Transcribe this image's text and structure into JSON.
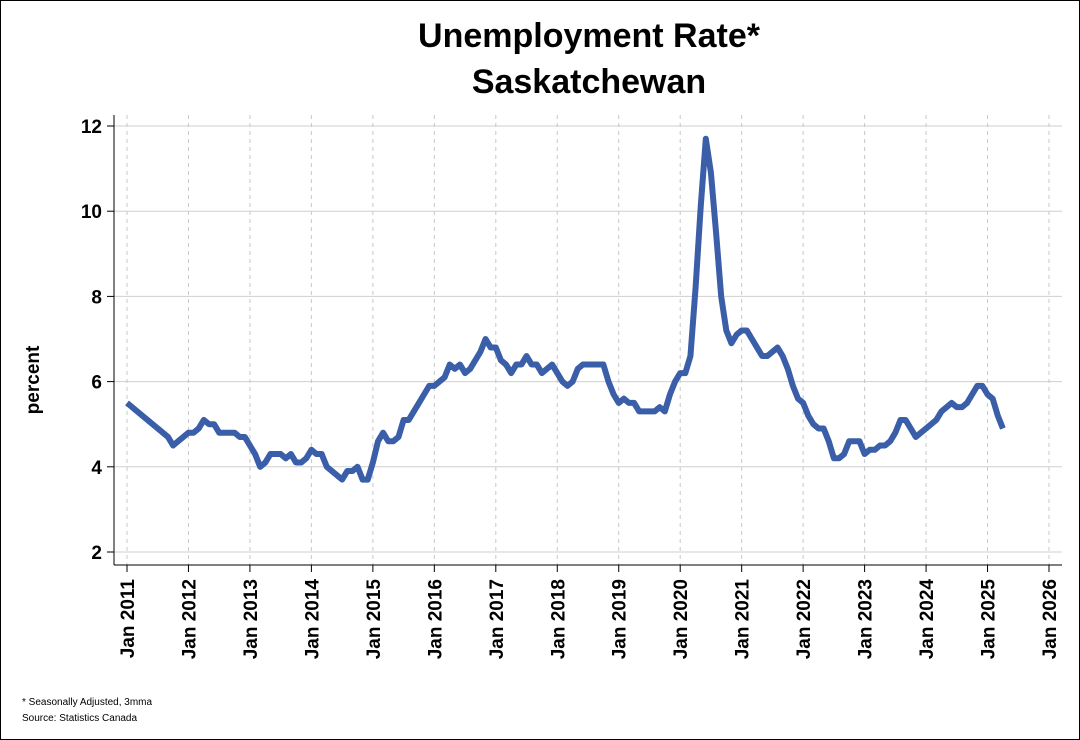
{
  "chart_data": {
    "type": "line",
    "title": "Unemployment Rate*",
    "subtitle": "Saskatchewan",
    "xlabel": "",
    "ylabel": "percent",
    "ylim": [
      2,
      12
    ],
    "xlim": [
      "Jan 2011",
      "Jan 2026"
    ],
    "yticks": [
      "2",
      "4",
      "6",
      "8",
      "10",
      "12"
    ],
    "xticks": [
      "Jan 2011",
      "Jan 2012",
      "Jan 2013",
      "Jan 2014",
      "Jan 2015",
      "Jan 2016",
      "Jan 2017",
      "Jan 2018",
      "Jan 2019",
      "Jan 2020",
      "Jan 2021",
      "Jan 2022",
      "Jan 2023",
      "Jan 2024",
      "Jan 2025",
      "Jan 2026"
    ],
    "grid": {
      "horizontal": "solid",
      "vertical": "dashed"
    },
    "line_color": "#3a5ea8",
    "series": [
      {
        "points": [
          [
            "2011-01",
            5.5
          ],
          [
            "2011-03",
            5.3
          ],
          [
            "2011-05",
            5.1
          ],
          [
            "2011-07",
            4.9
          ],
          [
            "2011-09",
            4.7
          ],
          [
            "2011-10",
            4.5
          ],
          [
            "2011-11",
            4.6
          ],
          [
            "2011-12",
            4.7
          ],
          [
            "2012-01",
            4.8
          ],
          [
            "2012-02",
            4.8
          ],
          [
            "2012-03",
            4.9
          ],
          [
            "2012-04",
            5.1
          ],
          [
            "2012-05",
            5.0
          ],
          [
            "2012-06",
            5.0
          ],
          [
            "2012-07",
            4.8
          ],
          [
            "2012-08",
            4.8
          ],
          [
            "2012-09",
            4.8
          ],
          [
            "2012-10",
            4.8
          ],
          [
            "2012-11",
            4.7
          ],
          [
            "2012-12",
            4.7
          ],
          [
            "2013-01",
            4.5
          ],
          [
            "2013-02",
            4.3
          ],
          [
            "2013-03",
            4.0
          ],
          [
            "2013-04",
            4.1
          ],
          [
            "2013-05",
            4.3
          ],
          [
            "2013-06",
            4.3
          ],
          [
            "2013-07",
            4.3
          ],
          [
            "2013-08",
            4.2
          ],
          [
            "2013-09",
            4.3
          ],
          [
            "2013-10",
            4.1
          ],
          [
            "2013-11",
            4.1
          ],
          [
            "2013-12",
            4.2
          ],
          [
            "2014-01",
            4.4
          ],
          [
            "2014-02",
            4.3
          ],
          [
            "2014-03",
            4.3
          ],
          [
            "2014-04",
            4.0
          ],
          [
            "2014-05",
            3.9
          ],
          [
            "2014-06",
            3.8
          ],
          [
            "2014-07",
            3.7
          ],
          [
            "2014-08",
            3.9
          ],
          [
            "2014-09",
            3.9
          ],
          [
            "2014-10",
            4.0
          ],
          [
            "2014-11",
            3.7
          ],
          [
            "2014-12",
            3.7
          ],
          [
            "2015-01",
            4.1
          ],
          [
            "2015-02",
            4.6
          ],
          [
            "2015-03",
            4.8
          ],
          [
            "2015-04",
            4.6
          ],
          [
            "2015-05",
            4.6
          ],
          [
            "2015-06",
            4.7
          ],
          [
            "2015-07",
            5.1
          ],
          [
            "2015-08",
            5.1
          ],
          [
            "2015-09",
            5.3
          ],
          [
            "2015-10",
            5.5
          ],
          [
            "2015-11",
            5.7
          ],
          [
            "2015-12",
            5.9
          ],
          [
            "2016-01",
            5.9
          ],
          [
            "2016-02",
            6.0
          ],
          [
            "2016-03",
            6.1
          ],
          [
            "2016-04",
            6.4
          ],
          [
            "2016-05",
            6.3
          ],
          [
            "2016-06",
            6.4
          ],
          [
            "2016-07",
            6.2
          ],
          [
            "2016-08",
            6.3
          ],
          [
            "2016-09",
            6.5
          ],
          [
            "2016-10",
            6.7
          ],
          [
            "2016-11",
            7.0
          ],
          [
            "2016-12",
            6.8
          ],
          [
            "2017-01",
            6.8
          ],
          [
            "2017-02",
            6.5
          ],
          [
            "2017-03",
            6.4
          ],
          [
            "2017-04",
            6.2
          ],
          [
            "2017-05",
            6.4
          ],
          [
            "2017-06",
            6.4
          ],
          [
            "2017-07",
            6.6
          ],
          [
            "2017-08",
            6.4
          ],
          [
            "2017-09",
            6.4
          ],
          [
            "2017-10",
            6.2
          ],
          [
            "2017-11",
            6.3
          ],
          [
            "2017-12",
            6.4
          ],
          [
            "2018-01",
            6.2
          ],
          [
            "2018-02",
            6.0
          ],
          [
            "2018-03",
            5.9
          ],
          [
            "2018-04",
            6.0
          ],
          [
            "2018-05",
            6.3
          ],
          [
            "2018-06",
            6.4
          ],
          [
            "2018-07",
            6.4
          ],
          [
            "2018-08",
            6.4
          ],
          [
            "2018-09",
            6.4
          ],
          [
            "2018-10",
            6.4
          ],
          [
            "2018-11",
            6.0
          ],
          [
            "2018-12",
            5.7
          ],
          [
            "2019-01",
            5.5
          ],
          [
            "2019-02",
            5.6
          ],
          [
            "2019-03",
            5.5
          ],
          [
            "2019-04",
            5.5
          ],
          [
            "2019-05",
            5.3
          ],
          [
            "2019-06",
            5.3
          ],
          [
            "2019-07",
            5.3
          ],
          [
            "2019-08",
            5.3
          ],
          [
            "2019-09",
            5.4
          ],
          [
            "2019-10",
            5.3
          ],
          [
            "2019-11",
            5.7
          ],
          [
            "2019-12",
            6.0
          ],
          [
            "2020-01",
            6.2
          ],
          [
            "2020-02",
            6.2
          ],
          [
            "2020-03",
            6.6
          ],
          [
            "2020-04",
            8.2
          ],
          [
            "2020-05",
            10.1
          ],
          [
            "2020-06",
            11.7
          ],
          [
            "2020-07",
            10.9
          ],
          [
            "2020-08",
            9.5
          ],
          [
            "2020-09",
            8.0
          ],
          [
            "2020-10",
            7.2
          ],
          [
            "2020-11",
            6.9
          ],
          [
            "2020-12",
            7.1
          ],
          [
            "2021-01",
            7.2
          ],
          [
            "2021-02",
            7.2
          ],
          [
            "2021-03",
            7.0
          ],
          [
            "2021-04",
            6.8
          ],
          [
            "2021-05",
            6.6
          ],
          [
            "2021-06",
            6.6
          ],
          [
            "2021-07",
            6.7
          ],
          [
            "2021-08",
            6.8
          ],
          [
            "2021-09",
            6.6
          ],
          [
            "2021-10",
            6.3
          ],
          [
            "2021-11",
            5.9
          ],
          [
            "2021-12",
            5.6
          ],
          [
            "2022-01",
            5.5
          ],
          [
            "2022-02",
            5.2
          ],
          [
            "2022-03",
            5.0
          ],
          [
            "2022-04",
            4.9
          ],
          [
            "2022-05",
            4.9
          ],
          [
            "2022-06",
            4.6
          ],
          [
            "2022-07",
            4.2
          ],
          [
            "2022-08",
            4.2
          ],
          [
            "2022-09",
            4.3
          ],
          [
            "2022-10",
            4.6
          ],
          [
            "2022-11",
            4.6
          ],
          [
            "2022-12",
            4.6
          ],
          [
            "2023-01",
            4.3
          ],
          [
            "2023-02",
            4.4
          ],
          [
            "2023-03",
            4.4
          ],
          [
            "2023-04",
            4.5
          ],
          [
            "2023-05",
            4.5
          ],
          [
            "2023-06",
            4.6
          ],
          [
            "2023-07",
            4.8
          ],
          [
            "2023-08",
            5.1
          ],
          [
            "2023-09",
            5.1
          ],
          [
            "2023-10",
            4.9
          ],
          [
            "2023-11",
            4.7
          ],
          [
            "2023-12",
            4.8
          ],
          [
            "2024-01",
            4.9
          ],
          [
            "2024-02",
            5.0
          ],
          [
            "2024-03",
            5.1
          ],
          [
            "2024-04",
            5.3
          ],
          [
            "2024-05",
            5.4
          ],
          [
            "2024-06",
            5.5
          ],
          [
            "2024-07",
            5.4
          ],
          [
            "2024-08",
            5.4
          ],
          [
            "2024-09",
            5.5
          ],
          [
            "2024-10",
            5.7
          ],
          [
            "2024-11",
            5.9
          ],
          [
            "2024-12",
            5.9
          ],
          [
            "2025-01",
            5.7
          ],
          [
            "2025-02",
            5.6
          ],
          [
            "2025-03",
            5.2
          ],
          [
            "2025-04",
            4.9
          ]
        ]
      }
    ]
  },
  "notes": {
    "line1": "* Seasonally Adjusted, 3mma",
    "line2": "Source: Statistics Canada"
  }
}
